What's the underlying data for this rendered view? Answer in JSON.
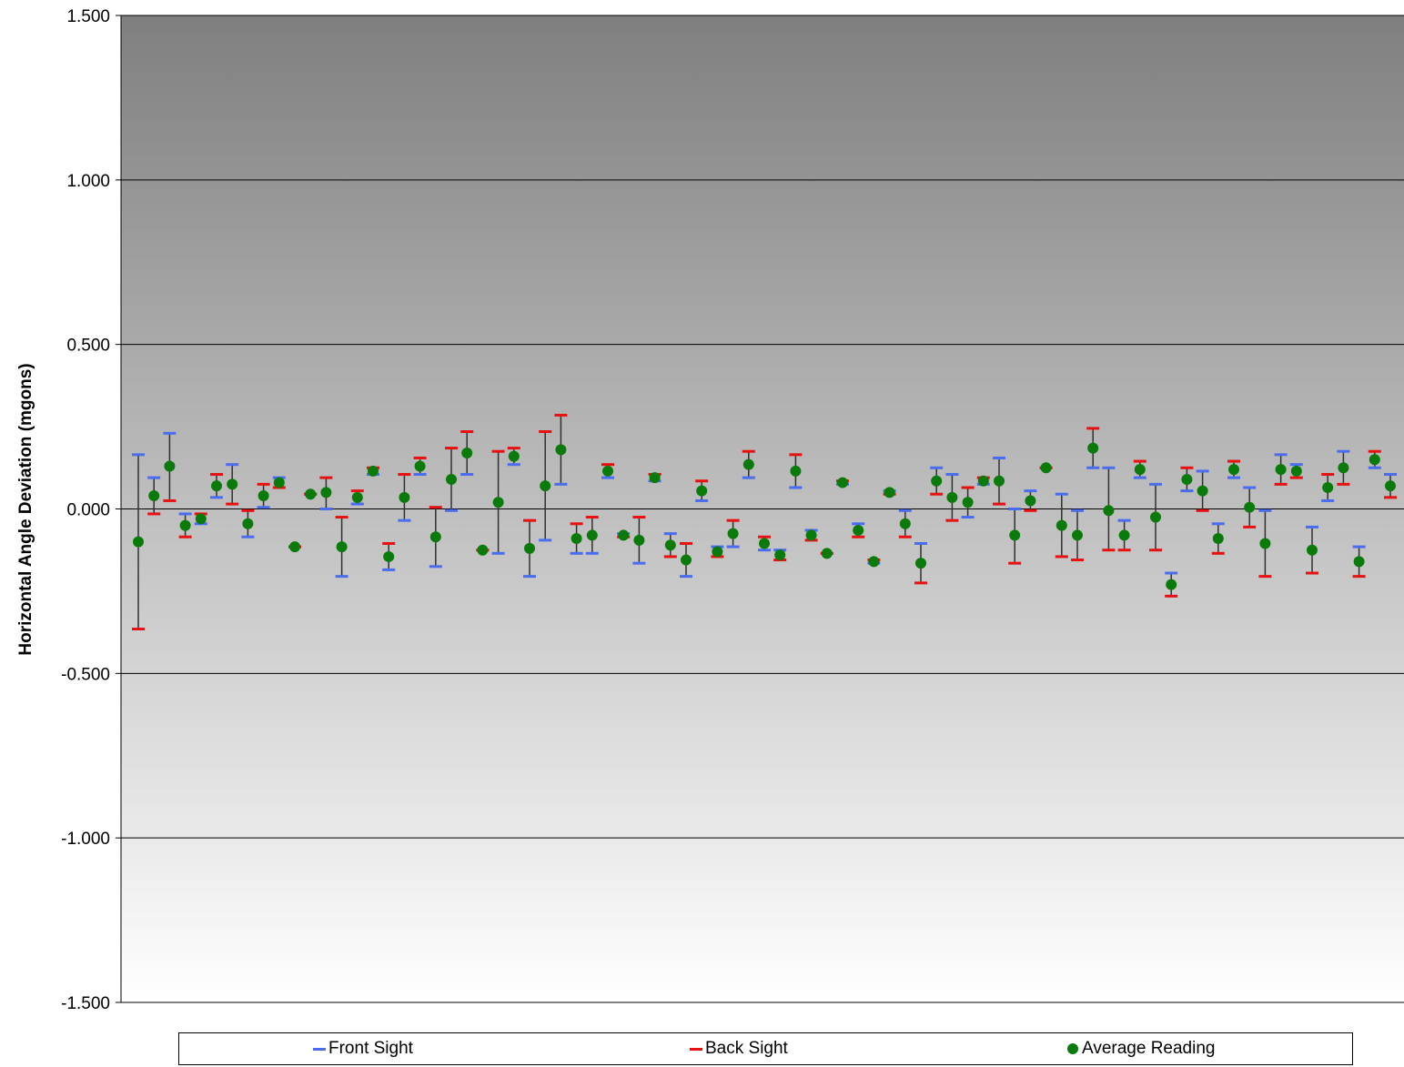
{
  "chart_data": {
    "type": "scatter",
    "title": "",
    "ylabel": "Horizontal Angle Deviation (mgons)",
    "xlabel": "",
    "ylim": [
      -1.5,
      1.5
    ],
    "yticks": [
      "1.500",
      "1.000",
      "0.500",
      "0.000",
      "-0.500",
      "-1.000",
      "-1.500"
    ],
    "ytick_values": [
      1.5,
      1.0,
      0.5,
      0.0,
      -0.5,
      -1.0,
      -1.5
    ],
    "grid": true,
    "legend_position": "bottom",
    "colors": {
      "front_sight": "#4a6cf0",
      "back_sight": "#e81010",
      "average": "#0a7a0a",
      "error_bar": "#303030",
      "background_top": "#7f7f7f",
      "background_bottom": "#ffffff"
    },
    "series": [
      {
        "name": "Front Sight",
        "values": [
          0.165,
          0.095,
          0.23,
          -0.015,
          -0.045,
          0.035,
          0.135,
          -0.085,
          0.005,
          0.095,
          -0.115,
          0.045,
          0.0,
          -0.205,
          0.015,
          0.105,
          -0.185,
          -0.035,
          0.105,
          -0.175,
          -0.005,
          0.105,
          -0.125,
          -0.135,
          0.135,
          -0.205,
          -0.095,
          0.075,
          -0.135,
          -0.135,
          0.095,
          -0.075,
          -0.165,
          0.085,
          -0.075,
          -0.205,
          0.025,
          -0.115,
          -0.115,
          0.095,
          -0.125,
          -0.125,
          0.065,
          -0.065,
          -0.135,
          0.075,
          -0.045,
          -0.165,
          0.055,
          -0.005,
          -0.105,
          0.125,
          0.105,
          -0.025,
          0.075,
          0.155,
          0.0,
          0.055,
          0.125,
          0.045,
          -0.005,
          0.125,
          0.125,
          -0.035,
          0.095,
          0.075,
          -0.195,
          0.055,
          0.115,
          -0.045,
          0.095,
          0.065,
          -0.005,
          0.165,
          0.135,
          -0.055,
          0.025,
          0.175,
          -0.115,
          0.125,
          0.105
        ]
      },
      {
        "name": "Back Sight",
        "values": [
          -0.365,
          -0.015,
          0.025,
          -0.085,
          -0.015,
          0.105,
          0.015,
          -0.005,
          0.075,
          0.065,
          -0.115,
          0.045,
          0.095,
          -0.025,
          0.055,
          0.125,
          -0.105,
          0.105,
          0.155,
          0.005,
          0.185,
          0.235,
          -0.125,
          0.175,
          0.185,
          -0.035,
          0.235,
          0.285,
          -0.045,
          -0.025,
          0.135,
          -0.085,
          -0.025,
          0.105,
          -0.145,
          -0.105,
          0.085,
          -0.145,
          -0.035,
          0.175,
          -0.085,
          -0.155,
          0.165,
          -0.095,
          -0.135,
          0.085,
          -0.085,
          -0.155,
          0.045,
          -0.085,
          -0.225,
          0.045,
          -0.035,
          0.065,
          0.095,
          0.015,
          -0.165,
          -0.005,
          0.125,
          -0.145,
          -0.155,
          0.245,
          -0.125,
          -0.125,
          0.145,
          -0.125,
          -0.265,
          0.125,
          -0.005,
          -0.135,
          0.145,
          -0.055,
          -0.205,
          0.075,
          0.095,
          -0.195,
          0.105,
          0.075,
          -0.205,
          0.175,
          0.035
        ]
      },
      {
        "name": "Average Reading",
        "values": [
          -0.1,
          0.04,
          0.13,
          -0.05,
          -0.03,
          0.07,
          0.075,
          -0.045,
          0.04,
          0.08,
          -0.115,
          0.045,
          0.05,
          -0.115,
          0.035,
          0.115,
          -0.145,
          0.035,
          0.13,
          -0.085,
          0.09,
          0.17,
          -0.125,
          0.02,
          0.16,
          -0.12,
          0.07,
          0.18,
          -0.09,
          -0.08,
          0.115,
          -0.08,
          -0.095,
          0.095,
          -0.11,
          -0.155,
          0.055,
          -0.13,
          -0.075,
          0.135,
          -0.105,
          -0.14,
          0.115,
          -0.08,
          -0.135,
          0.08,
          -0.065,
          -0.16,
          0.05,
          -0.045,
          -0.165,
          0.085,
          0.035,
          0.02,
          0.085,
          0.085,
          -0.08,
          0.025,
          0.125,
          -0.05,
          -0.08,
          0.185,
          -0.005,
          -0.08,
          0.12,
          -0.025,
          -0.23,
          0.09,
          0.055,
          -0.09,
          0.12,
          0.005,
          -0.105,
          0.12,
          0.115,
          -0.125,
          0.065,
          0.125,
          -0.16,
          0.15,
          0.07
        ]
      }
    ]
  },
  "legend": {
    "front_sight": "Front Sight",
    "back_sight": "Back Sight",
    "average": "Average Reading"
  }
}
